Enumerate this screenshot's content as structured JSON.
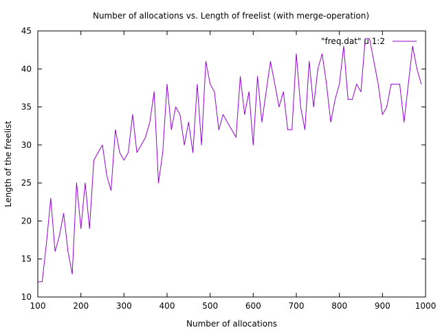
{
  "chart_data": {
    "type": "line",
    "title": "Number of allocations vs. Length of freelist (with merge-operation)",
    "xlabel": "Number of allocations",
    "ylabel": "Length of the freelist",
    "xlim": [
      100,
      1000
    ],
    "ylim": [
      10,
      45
    ],
    "xticks": [
      100,
      200,
      300,
      400,
      500,
      600,
      700,
      800,
      900,
      1000
    ],
    "yticks": [
      10,
      15,
      20,
      25,
      30,
      35,
      40,
      45
    ],
    "grid": false,
    "legend_position": "top-right",
    "series": [
      {
        "name": "\"freq.dat\" u 1:2",
        "color": "#9400d3",
        "x": [
          100,
          110,
          120,
          130,
          140,
          150,
          160,
          170,
          180,
          190,
          200,
          210,
          220,
          230,
          240,
          250,
          260,
          270,
          280,
          290,
          300,
          310,
          320,
          330,
          340,
          350,
          360,
          370,
          380,
          390,
          400,
          410,
          420,
          430,
          440,
          450,
          460,
          470,
          480,
          490,
          500,
          510,
          520,
          530,
          540,
          550,
          560,
          570,
          580,
          590,
          600,
          610,
          620,
          630,
          640,
          650,
          660,
          670,
          680,
          690,
          700,
          710,
          720,
          730,
          740,
          750,
          760,
          770,
          780,
          790,
          800,
          810,
          820,
          830,
          840,
          850,
          860,
          870,
          880,
          890,
          900,
          910,
          920,
          930,
          940,
          950,
          960,
          970,
          980,
          990
        ],
        "y": [
          12,
          12,
          17,
          23,
          16,
          18,
          21,
          16,
          13,
          25,
          19,
          25,
          19,
          28,
          29,
          30,
          26,
          24,
          32,
          29,
          28,
          29,
          34,
          29,
          30,
          31,
          33,
          37,
          25,
          29,
          38,
          32,
          35,
          34,
          30,
          33,
          29,
          38,
          30,
          41,
          38,
          37,
          32,
          34,
          33,
          32,
          31,
          39,
          34,
          37,
          30,
          39,
          33,
          37,
          41,
          38,
          35,
          37,
          32,
          32,
          42,
          35,
          32,
          41,
          35,
          40,
          42,
          38,
          33,
          36,
          38,
          43,
          36,
          36,
          38,
          37,
          44,
          44,
          41,
          38,
          34,
          35,
          38,
          38,
          38,
          33,
          38,
          43,
          40,
          38
        ]
      }
    ]
  }
}
